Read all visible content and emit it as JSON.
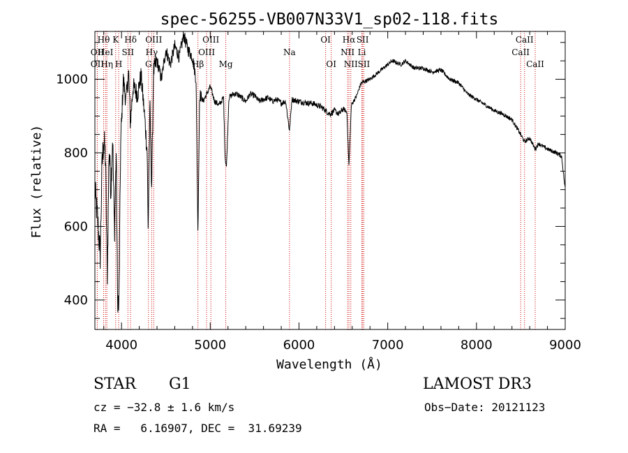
{
  "chart_data": {
    "type": "line",
    "title": "spec-56255-VB007N33V1_sp02-118.fits",
    "xlabel": "Wavelength (Å)",
    "ylabel": "Flux (relative)",
    "xlim": [
      3700,
      9000
    ],
    "ylim": [
      320,
      1130
    ],
    "xticks": [
      4000,
      5000,
      6000,
      7000,
      8000,
      9000
    ],
    "yticks": [
      400,
      600,
      800,
      1000
    ],
    "line_color": "#000000",
    "marker_color": "#cc0000",
    "spectrum_anchors": [
      [
        3700,
        700
      ],
      [
        3730,
        620
      ],
      [
        3760,
        520
      ],
      [
        3780,
        760
      ],
      [
        3800,
        840
      ],
      [
        3820,
        780
      ],
      [
        3840,
        460
      ],
      [
        3860,
        820
      ],
      [
        3880,
        700
      ],
      [
        3900,
        850
      ],
      [
        3920,
        580
      ],
      [
        3940,
        800
      ],
      [
        3955,
        420
      ],
      [
        3970,
        370
      ],
      [
        3990,
        820
      ],
      [
        4020,
        1000
      ],
      [
        4050,
        940
      ],
      [
        4080,
        1020
      ],
      [
        4100,
        880
      ],
      [
        4130,
        980
      ],
      [
        4180,
        960
      ],
      [
        4220,
        1010
      ],
      [
        4260,
        900
      ],
      [
        4290,
        800
      ],
      [
        4300,
        590
      ],
      [
        4320,
        930
      ],
      [
        4340,
        700
      ],
      [
        4360,
        1020
      ],
      [
        4400,
        1050
      ],
      [
        4450,
        1000
      ],
      [
        4500,
        1080
      ],
      [
        4550,
        1040
      ],
      [
        4600,
        1090
      ],
      [
        4650,
        1060
      ],
      [
        4700,
        1120
      ],
      [
        4750,
        1080
      ],
      [
        4800,
        1060
      ],
      [
        4840,
        1000
      ],
      [
        4861,
        580
      ],
      [
        4880,
        960
      ],
      [
        4920,
        940
      ],
      [
        4960,
        960
      ],
      [
        5000,
        980
      ],
      [
        5050,
        940
      ],
      [
        5100,
        930
      ],
      [
        5150,
        950
      ],
      [
        5167,
        790
      ],
      [
        5183,
        760
      ],
      [
        5210,
        950
      ],
      [
        5260,
        960
      ],
      [
        5300,
        960
      ],
      [
        5350,
        950
      ],
      [
        5400,
        940
      ],
      [
        5450,
        960
      ],
      [
        5500,
        955
      ],
      [
        5550,
        940
      ],
      [
        5600,
        945
      ],
      [
        5650,
        950
      ],
      [
        5700,
        940
      ],
      [
        5750,
        945
      ],
      [
        5800,
        935
      ],
      [
        5850,
        940
      ],
      [
        5893,
        860
      ],
      [
        5920,
        945
      ],
      [
        6000,
        940
      ],
      [
        6100,
        935
      ],
      [
        6150,
        935
      ],
      [
        6200,
        930
      ],
      [
        6250,
        925
      ],
      [
        6300,
        915
      ],
      [
        6350,
        905
      ],
      [
        6400,
        915
      ],
      [
        6450,
        905
      ],
      [
        6500,
        920
      ],
      [
        6540,
        910
      ],
      [
        6563,
        760
      ],
      [
        6590,
        930
      ],
      [
        6650,
        955
      ],
      [
        6700,
        990
      ],
      [
        6750,
        995
      ],
      [
        6800,
        1000
      ],
      [
        6850,
        1010
      ],
      [
        6900,
        1020
      ],
      [
        6950,
        1030
      ],
      [
        7000,
        1040
      ],
      [
        7050,
        1050
      ],
      [
        7100,
        1045
      ],
      [
        7150,
        1040
      ],
      [
        7200,
        1050
      ],
      [
        7300,
        1030
      ],
      [
        7400,
        1030
      ],
      [
        7500,
        1020
      ],
      [
        7600,
        1025
      ],
      [
        7700,
        1000
      ],
      [
        7800,
        990
      ],
      [
        7900,
        960
      ],
      [
        8000,
        945
      ],
      [
        8100,
        930
      ],
      [
        8200,
        915
      ],
      [
        8300,
        905
      ],
      [
        8400,
        890
      ],
      [
        8498,
        850
      ],
      [
        8542,
        830
      ],
      [
        8600,
        840
      ],
      [
        8662,
        810
      ],
      [
        8700,
        825
      ],
      [
        8800,
        810
      ],
      [
        8900,
        800
      ],
      [
        8960,
        790
      ],
      [
        9000,
        700
      ]
    ],
    "line_markers": [
      {
        "label": "Hθ",
        "wavelength": 3798,
        "row": 0
      },
      {
        "label": "K",
        "wavelength": 3934,
        "row": 0
      },
      {
        "label": "Hδ",
        "wavelength": 4102,
        "row": 0
      },
      {
        "label": "OIII",
        "wavelength": 4363,
        "row": 0
      },
      {
        "label": "OIII",
        "wavelength": 5007,
        "row": 0
      },
      {
        "label": "OI",
        "wavelength": 6300,
        "row": 0
      },
      {
        "label": "Hα",
        "wavelength": 6563,
        "row": 0
      },
      {
        "label": "SII",
        "wavelength": 6717,
        "row": 0
      },
      {
        "label": "CaII",
        "wavelength": 8542,
        "row": 0
      },
      {
        "label": "OII",
        "wavelength": 3727,
        "row": 1
      },
      {
        "label": "HeI",
        "wavelength": 3820,
        "row": 1
      },
      {
        "label": "SII",
        "wavelength": 4072,
        "row": 1
      },
      {
        "label": "Hγ",
        "wavelength": 4340,
        "row": 1
      },
      {
        "label": "OIII",
        "wavelength": 4959,
        "row": 1
      },
      {
        "label": "Na",
        "wavelength": 5893,
        "row": 1
      },
      {
        "label": "NII",
        "wavelength": 6548,
        "row": 1
      },
      {
        "label": "Li",
        "wavelength": 6708,
        "row": 1
      },
      {
        "label": "CaII",
        "wavelength": 8498,
        "row": 1
      },
      {
        "label": "OII",
        "wavelength": 3727,
        "row": 2
      },
      {
        "label": "Hη",
        "wavelength": 3835,
        "row": 2
      },
      {
        "label": "H",
        "wavelength": 3968,
        "row": 2
      },
      {
        "label": "G",
        "wavelength": 4304,
        "row": 2
      },
      {
        "label": "Hβ",
        "wavelength": 4861,
        "row": 2
      },
      {
        "label": "Mg",
        "wavelength": 5175,
        "row": 2
      },
      {
        "label": "OI",
        "wavelength": 6363,
        "row": 2
      },
      {
        "label": "NII",
        "wavelength": 6584,
        "row": 2
      },
      {
        "label": "SII",
        "wavelength": 6731,
        "row": 2
      },
      {
        "label": "CaII",
        "wavelength": 8662,
        "row": 2
      }
    ]
  },
  "info": {
    "object_class": "STAR",
    "subclass": "G1",
    "survey": "LAMOST DR3",
    "cz": "cz = −32.8 ± 1.6 km/s",
    "obs_date": "Obs−Date: 20121123",
    "coords": "RA =   6.16907, DEC =  31.69239"
  }
}
